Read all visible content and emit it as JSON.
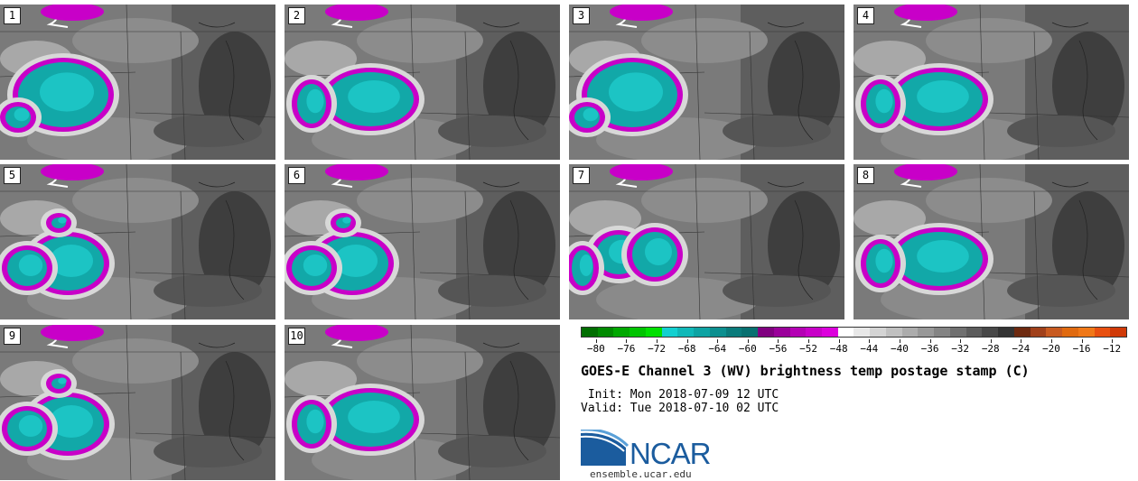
{
  "panels": [
    {
      "label": "1",
      "storm": "west"
    },
    {
      "label": "2",
      "storm": "center"
    },
    {
      "label": "3",
      "storm": "west"
    },
    {
      "label": "4",
      "storm": "center"
    },
    {
      "label": "5",
      "storm": "south"
    },
    {
      "label": "6",
      "storm": "south"
    },
    {
      "label": "7",
      "storm": "twin"
    },
    {
      "label": "8",
      "storm": "center"
    },
    {
      "label": "9",
      "storm": "south"
    },
    {
      "label": "10",
      "storm": "center"
    }
  ],
  "colorbar": {
    "colors": [
      "#006e00",
      "#008a00",
      "#00a800",
      "#00c400",
      "#00e000",
      "#13d0d0",
      "#10b8b8",
      "#0ea3a3",
      "#0c8f8f",
      "#0a7b7b",
      "#087070",
      "#800080",
      "#9a009a",
      "#b400b4",
      "#c800c8",
      "#dc00dc",
      "#ffffff",
      "#e8e8e8",
      "#d4d4d4",
      "#c0c0c0",
      "#acacac",
      "#989898",
      "#848484",
      "#707070",
      "#5c5c5c",
      "#484848",
      "#343434",
      "#6e2a10",
      "#a0401a",
      "#c85a20",
      "#e06a10",
      "#f07818",
      "#e85010",
      "#d03a08"
    ],
    "ticks": [
      "−80",
      "−76",
      "−72",
      "−68",
      "−64",
      "−60",
      "−56",
      "−52",
      "−48",
      "−44",
      "−40",
      "−36",
      "−32",
      "−28",
      "−24",
      "−20",
      "−16",
      "−12"
    ],
    "range": [
      -82,
      -10
    ]
  },
  "title": "GOES-E Channel 3 (WV) brightness temp postage stamp (C)",
  "init": " Init: Mon 2018-07-09 12 UTC",
  "valid": "Valid: Tue 2018-07-10 02 UTC",
  "logo_text": "NCAR",
  "site": "ensemble.ucar.edu"
}
